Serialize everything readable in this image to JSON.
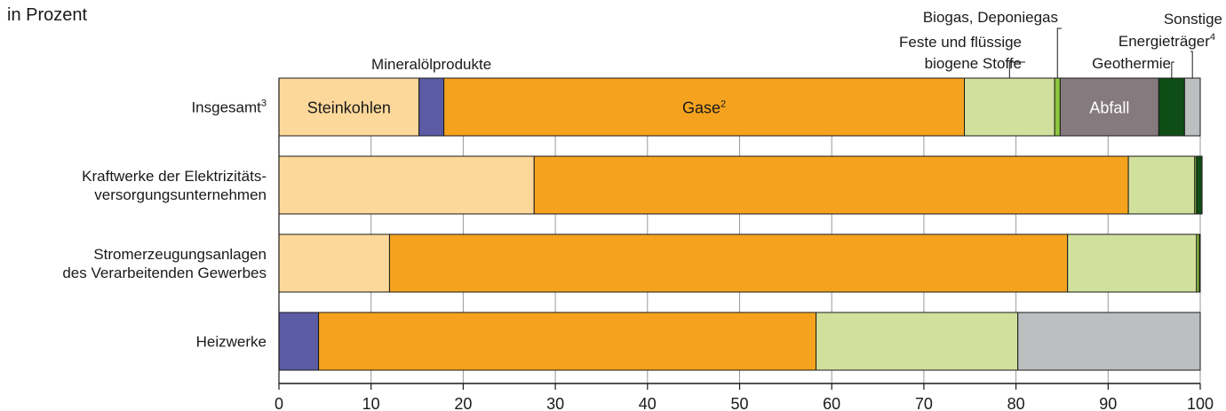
{
  "subtitle": "in Prozent",
  "chart_data": {
    "type": "bar",
    "orientation": "horizontal",
    "stacked": true,
    "xlim": [
      0,
      100
    ],
    "x_ticks": [
      0,
      10,
      20,
      30,
      40,
      50,
      60,
      70,
      80,
      90,
      100
    ],
    "grid": "vertical",
    "categories": [
      {
        "lines": [
          "Insgesamt"
        ],
        "sup": "3"
      },
      {
        "lines": [
          "Kraftwerke der Elektrizitäts-",
          "versorgungsunternehmen"
        ],
        "sup": ""
      },
      {
        "lines": [
          "Stromerzeugungsanlagen",
          "des Verarbeitenden Gewerbes"
        ],
        "sup": ""
      },
      {
        "lines": [
          "Heizwerke"
        ],
        "sup": ""
      }
    ],
    "series": [
      {
        "key": "steinkohlen",
        "color": "#fdd89b",
        "values": [
          15.2,
          27.7,
          12.0,
          0
        ]
      },
      {
        "key": "mineraloel",
        "color": "#5b5ba6",
        "values": [
          2.7,
          0,
          0,
          4.3
        ]
      },
      {
        "key": "gase",
        "color": "#f5a31e",
        "values": [
          56.5,
          64.5,
          73.6,
          54.0
        ]
      },
      {
        "key": "biogen",
        "color": "#d1e09d",
        "values": [
          9.8,
          7.2,
          14.0,
          21.9
        ]
      },
      {
        "key": "biogas",
        "color": "#8dc63f",
        "values": [
          0.6,
          0.2,
          0.3,
          0
        ]
      },
      {
        "key": "abfall",
        "color": "#857a7e",
        "values": [
          10.7,
          0,
          0,
          0
        ]
      },
      {
        "key": "geothermie",
        "color": "#0f4d16",
        "values": [
          2.8,
          0.6,
          0,
          0
        ]
      },
      {
        "key": "sonstige",
        "color": "#bdbec0",
        "values": [
          1.7,
          0,
          0.1,
          19.8
        ]
      }
    ],
    "bar_labels": [
      {
        "series": "steinkohlen",
        "text": "Steinkohlen",
        "sup": "",
        "color": "#1a1a1a"
      },
      {
        "series": "gase",
        "text": "Gase",
        "sup": "2",
        "color": "#1a1a1a"
      },
      {
        "series": "abfall",
        "text": "Abfall",
        "sup": "",
        "color": "#ffffff"
      }
    ],
    "annotations": [
      {
        "series": "mineraloel",
        "lines": [
          "Mineralölprodukte"
        ],
        "sup": ""
      },
      {
        "series": "biogen",
        "lines": [
          "Feste und flüssige",
          "biogene Stoffe"
        ],
        "sup": ""
      },
      {
        "series": "biogas",
        "lines": [
          "Biogas, Deponiegas"
        ],
        "sup": ""
      },
      {
        "series": "geothermie",
        "lines": [
          "Geothermie"
        ],
        "sup": ""
      },
      {
        "series": "sonstige",
        "lines": [
          "Sonstige",
          "Energieträger"
        ],
        "sup": "4"
      }
    ]
  }
}
